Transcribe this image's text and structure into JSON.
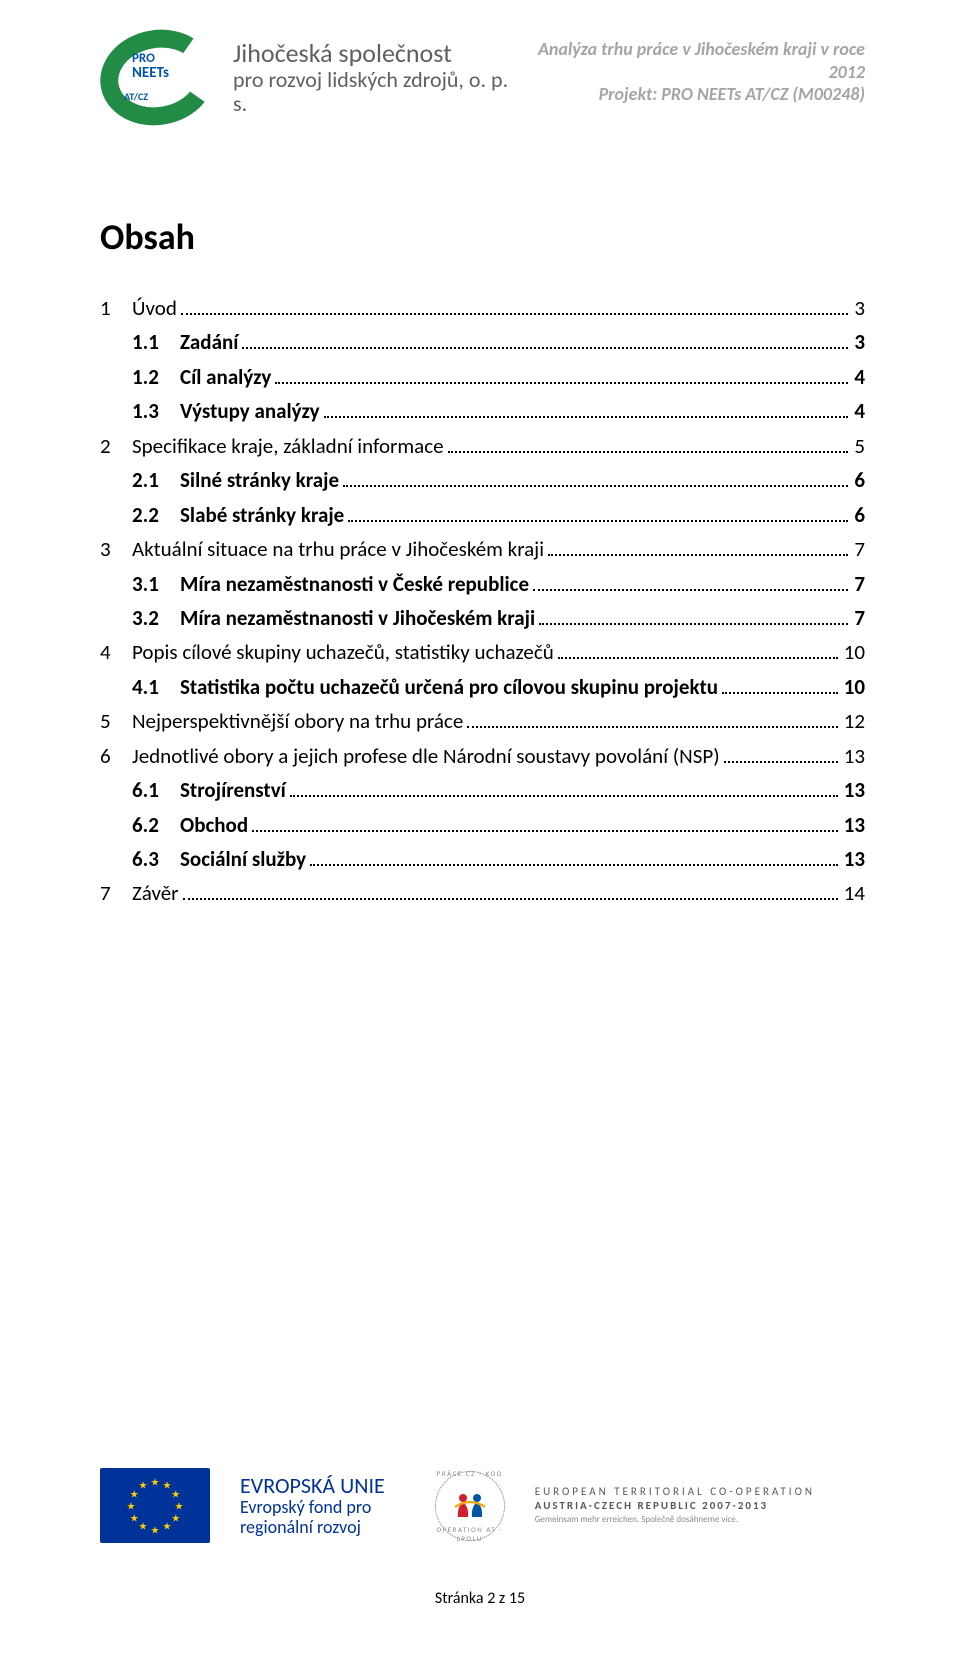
{
  "header": {
    "neets": {
      "line1": "PRO",
      "line2": "NEETs",
      "badge": "AT/CZ"
    },
    "org": {
      "line1": "Jihočeská společnost",
      "line2": "pro rozvoj lidských zdrojů, o. p. s."
    },
    "right": {
      "line1": "Analýza trhu práce v Jihočeském kraji v roce 2012",
      "line2": "Projekt: PRO NEETs AT/CZ (M00248)"
    }
  },
  "toc": {
    "title": "Obsah",
    "items": [
      {
        "level": 1,
        "num": "1",
        "label": "Úvod",
        "page": "3",
        "bold": false
      },
      {
        "level": 2,
        "num": "1.1",
        "label": "Zadání",
        "page": "3",
        "bold": true
      },
      {
        "level": 2,
        "num": "1.2",
        "label": "Cíl analýzy",
        "page": "4",
        "bold": true
      },
      {
        "level": 2,
        "num": "1.3",
        "label": "Výstupy analýzy",
        "page": "4",
        "bold": true
      },
      {
        "level": 1,
        "num": "2",
        "label": "Specifikace kraje, základní informace",
        "page": "5",
        "bold": false
      },
      {
        "level": 2,
        "num": "2.1",
        "label": "Silné stránky kraje",
        "page": "6",
        "bold": true
      },
      {
        "level": 2,
        "num": "2.2",
        "label": "Slabé stránky kraje",
        "page": "6",
        "bold": true
      },
      {
        "level": 1,
        "num": "3",
        "label": "Aktuální situace na trhu práce v Jihočeském kraji",
        "page": "7",
        "bold": false
      },
      {
        "level": 2,
        "num": "3.1",
        "label": "Míra nezaměstnanosti v České republice",
        "page": "7",
        "bold": true
      },
      {
        "level": 2,
        "num": "3.2",
        "label": "Míra nezaměstnanosti v Jihočeském kraji",
        "page": "7",
        "bold": true
      },
      {
        "level": 1,
        "num": "4",
        "label": "Popis cílové skupiny uchazečů, statistiky uchazečů",
        "page": "10",
        "bold": false
      },
      {
        "level": 2,
        "num": "4.1",
        "label": "Statistika počtu uchazečů určená pro cílovou skupinu projektu",
        "page": "10",
        "bold": true
      },
      {
        "level": 1,
        "num": "5",
        "label": "Nejperspektivnější obory na trhu práce",
        "page": "12",
        "bold": false
      },
      {
        "level": 1,
        "num": "6",
        "label": "Jednotlivé obory a jejich profese dle Národní soustavy povolání (NSP)",
        "page": "13",
        "bold": false
      },
      {
        "level": 2,
        "num": "6.1",
        "label": "Strojírenství",
        "page": "13",
        "bold": true
      },
      {
        "level": 2,
        "num": "6.2",
        "label": "Obchod",
        "page": "13",
        "bold": true
      },
      {
        "level": 2,
        "num": "6.3",
        "label": "Sociální služby",
        "page": "13",
        "bold": true
      },
      {
        "level": 1,
        "num": "7",
        "label": "Závěr",
        "page": "14",
        "bold": false
      }
    ]
  },
  "footer": {
    "eu": {
      "line1": "EVROPSKÁ UNIE",
      "line2": "Evropský fond pro",
      "line3": "regionální rozvoj"
    },
    "coop": {
      "top": "PRÁCE CZ - KOO",
      "bottom": "OPERATION AT - SPOLU"
    },
    "etc": {
      "line1": "EUROPEAN TERRITORIAL CO-OPERATION",
      "line2": "AUSTRIA-CZECH REPUBLIC 2007-2013",
      "line3": "Gemeinsam mehr erreichen. Společně dosáhneme více."
    },
    "pagenum": "Stránka 2 z 15"
  },
  "colors": {
    "text_gray": "#a5a5a5",
    "eu_blue": "#003399",
    "eu_gold": "#ffcc00",
    "green": "#228b45",
    "logo_blue": "#0055a5"
  }
}
